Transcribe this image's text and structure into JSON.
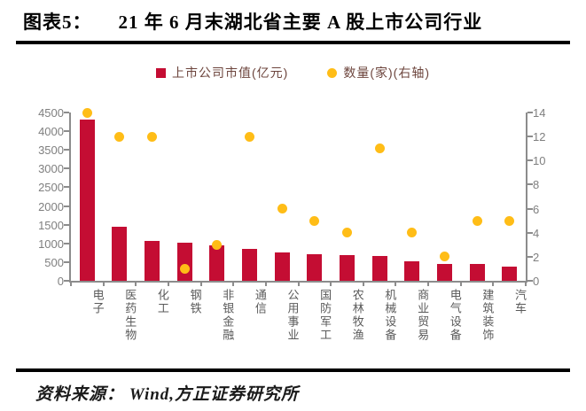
{
  "header": {
    "label": "图表5：",
    "title": "21 年 6 月末湖北省主要 A 股上市公司行业"
  },
  "legend": {
    "bar_label": "上市公司市值(亿元)",
    "dot_label": "数量(家)(右轴)"
  },
  "footer": {
    "source": "资料来源： Wind,方正证券研究所"
  },
  "colors": {
    "bar": "#c40d33",
    "dot": "#ffbd17",
    "axis": "#8c8c8c",
    "tick_text": "#7f7f7f",
    "xlabel_text": "#5a5a5a",
    "legend_text": "#6d453d"
  },
  "chart_data": {
    "type": "bar",
    "title": "21 年 6 月末湖北省主要 A 股上市公司行业",
    "categories": [
      "电子",
      "医药生物",
      "化工",
      "钢铁",
      "非银金融",
      "通信",
      "公用事业",
      "国防军工",
      "农林牧渔",
      "机械设备",
      "商业贸易",
      "电气设备",
      "建筑装饰",
      "汽车"
    ],
    "series": [
      {
        "name": "上市公司市值(亿元)",
        "type": "bar",
        "axis": "left",
        "values": [
          4300,
          1440,
          1060,
          1020,
          950,
          860,
          750,
          720,
          690,
          660,
          520,
          460,
          445,
          370
        ]
      },
      {
        "name": "数量(家)(右轴)",
        "type": "scatter",
        "axis": "right",
        "values": [
          14,
          12,
          12,
          1,
          3,
          12,
          6,
          5,
          4,
          11,
          4,
          2,
          5,
          5
        ]
      }
    ],
    "left_axis": {
      "label": "",
      "min": 0,
      "max": 4500,
      "step": 500,
      "ticks": [
        0,
        500,
        1000,
        1500,
        2000,
        2500,
        3000,
        3500,
        4000,
        4500
      ]
    },
    "right_axis": {
      "label": "",
      "min": 0,
      "max": 14,
      "step": 2,
      "ticks": [
        0,
        2,
        4,
        6,
        8,
        10,
        12,
        14
      ]
    },
    "grid": false,
    "legend_position": "top"
  }
}
